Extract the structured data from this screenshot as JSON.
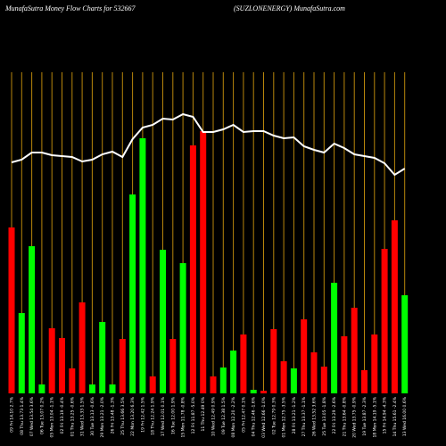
{
  "chart_data": {
    "type": "bar",
    "title": "MunafaSutra  Money Flow  Charts for 532667",
    "subtitle": "(SUZLONENERGY) MunafaSutra.com",
    "categories": [
      "09 Fri 14.10 2.7%",
      "08 Thu 13.73 1.4%",
      "07 Wed 13.54 3.6%",
      "06 Tue 13.07 0.2%",
      "05 Mon 13.04 -1.1%",
      "02 Fri 13.19 -0.4%",
      "01 Thu 13.25 -0.6%",
      "31 Wed 13.33 1.5%",
      "30 Tue 13.13 -0.6%",
      "29 Mon 13.21 -2.0%",
      "26 Fri 13.48 -1.3%",
      "25 Thu 13.66 3.5%",
      "22 Mon 13.20 6.3%",
      "19 Fri 12.42 1.5%",
      "18 Thu 12.24 1.9%",
      "17 Wed 12.01 0.1%",
      "16 Tue 12.00 1.9%",
      "15 Mon 11.78 -0.8%",
      "12 Fri 11.87 -5.0%",
      "11 Thu 12.49 0%",
      "10 Wed 12.49 0.9%",
      "09 Tue 12.38 1.5%",
      "08 Mon 12.20 -2.2%",
      "05 Fri 12.47 0.1%",
      "04 Thu 12.46 -1.6%",
      "03 Wed 12.66 -1.0%",
      "02 Tue 12.79 0.3%",
      "01 Mon 12.75 -3.5%",
      "28 Fri 13.21 -1.2%",
      "27 Thu 13.37 -1.1%",
      "26 Wed 13.52 3.6%",
      "25 Tue 13.05 -1.8%",
      "22 Fri 13.29 -2.6%",
      "21 Thu 13.64 -0.8%",
      "20 Wed 13.75 -0.9%",
      "19 Tue 13.87 -2.3%",
      "18 Mon 14.19 -5.1%",
      "15 Fri 14.94 -4.3%",
      "14 Thu 15.61 -2.4%",
      "13 Wed 16.00 0.6%"
    ],
    "series": [
      {
        "values": [
          186,
          90,
          165,
          10,
          73,
          62,
          28,
          102,
          10,
          80,
          10,
          61,
          223,
          286,
          19,
          161,
          61,
          146,
          278,
          294,
          19,
          29,
          48,
          66,
          4,
          3,
          72,
          36,
          28,
          83,
          46,
          30,
          124,
          64,
          96,
          26,
          66,
          162,
          194,
          110
        ],
        "colors": [
          "#ff0000",
          "#00ff00",
          "#00ff00",
          "#00ff00",
          "#ff0000",
          "#ff0000",
          "#ff0000",
          "#ff0000",
          "#00ff00",
          "#00ff00",
          "#00ff00",
          "#ff0000",
          "#00ff00",
          "#00ff00",
          "#ff0000",
          "#00ff00",
          "#ff0000",
          "#00ff00",
          "#ff0000",
          "#ff0000",
          "#ff0000",
          "#00ff00",
          "#00ff00",
          "#ff0000",
          "#00ff00",
          "#ff0000",
          "#ff0000",
          "#ff0000",
          "#00ff00",
          "#ff0000",
          "#ff0000",
          "#ff0000",
          "#00ff00",
          "#ff0000",
          "#ff0000",
          "#ff0000",
          "#ff0000",
          "#ff0000",
          "#ff0000",
          "#00ff00"
        ]
      },
      {
        "type": "line",
        "color": "#ffffff",
        "values": [
          259,
          262,
          270,
          270,
          267,
          266,
          265,
          260,
          262,
          268,
          271,
          265,
          285,
          298,
          301,
          308,
          307,
          313,
          310,
          293,
          293,
          296,
          301,
          293,
          294,
          294,
          289,
          286,
          287,
          277,
          273,
          270,
          280,
          275,
          268,
          266,
          264,
          258,
          245,
          252
        ]
      }
    ],
    "ylim": [
      0,
      360
    ],
    "grid_color": "#b8860b",
    "background": "#000000"
  }
}
